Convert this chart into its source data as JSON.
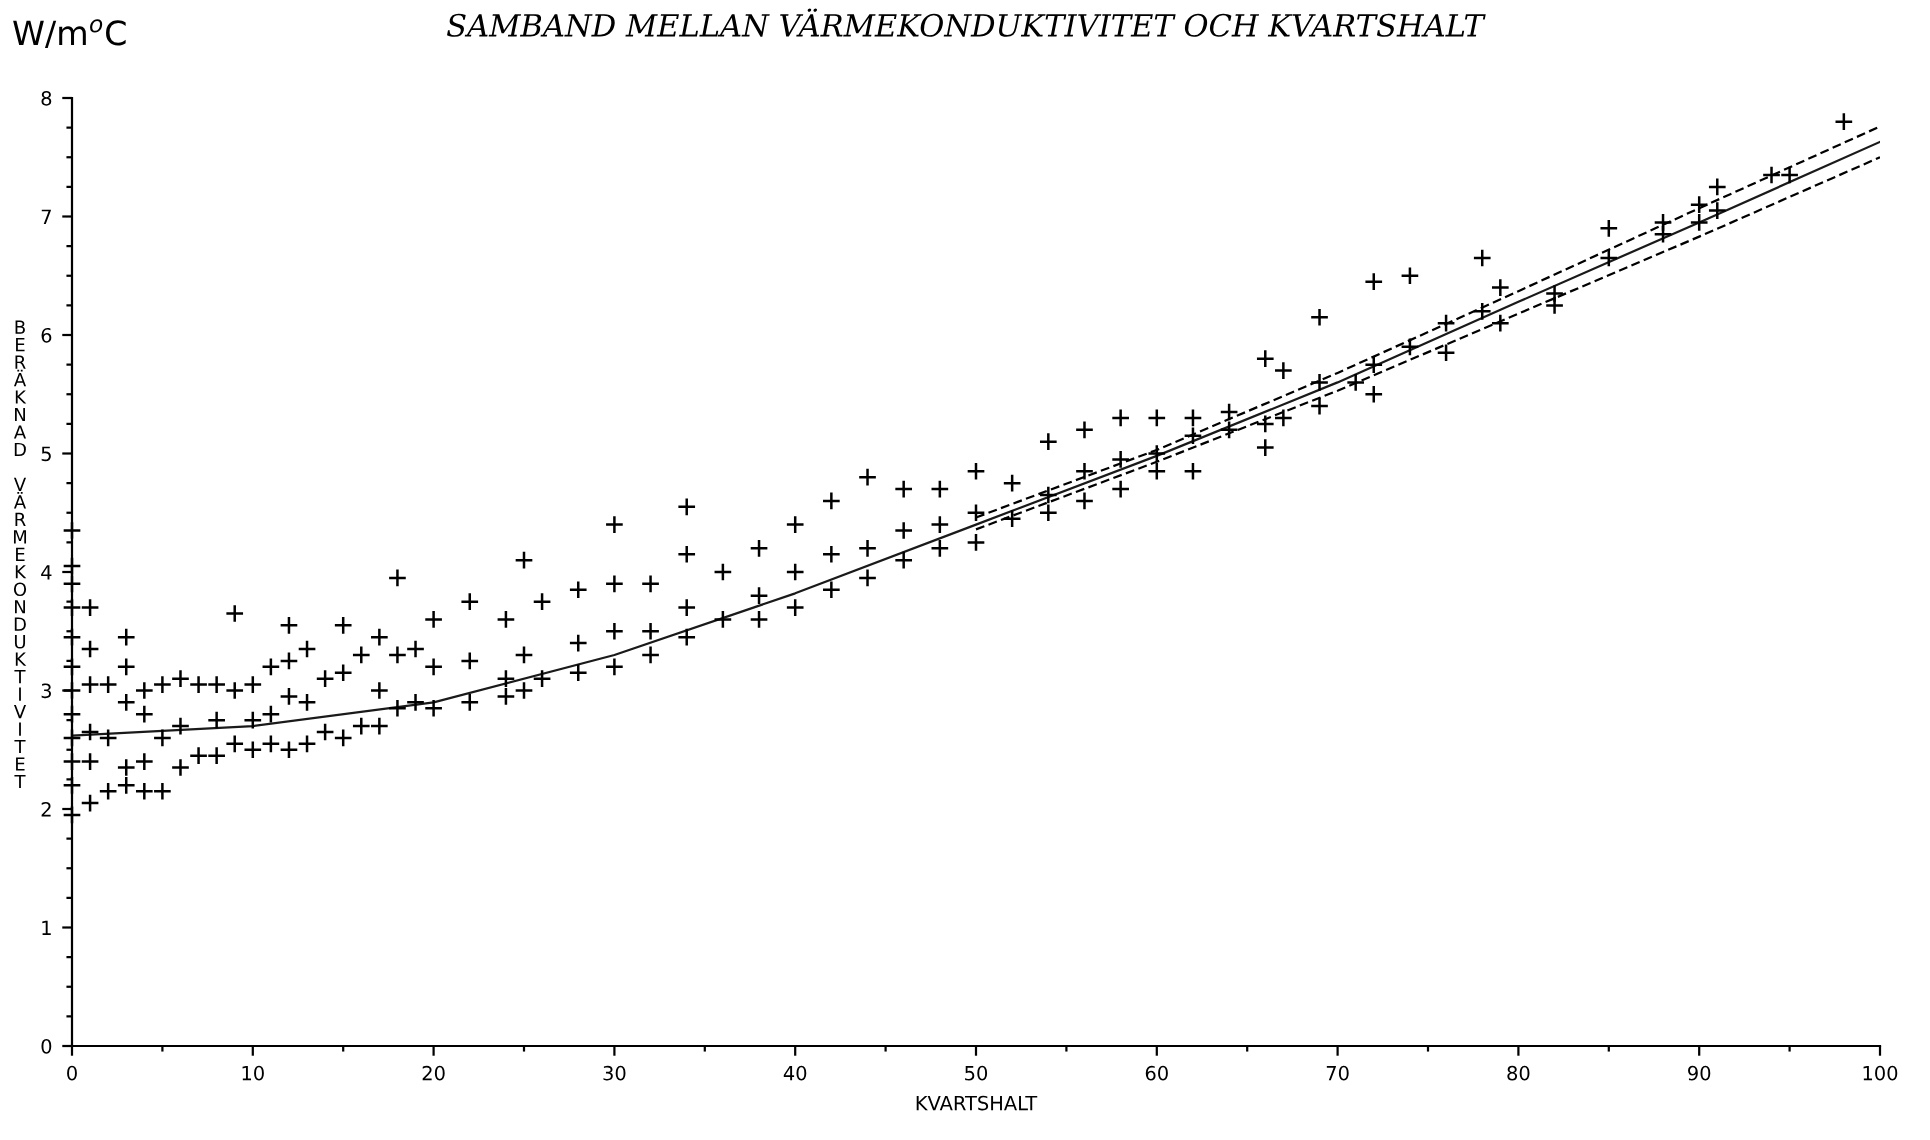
{
  "chart_data": {
    "type": "scatter",
    "title": "SAMBAND MELLAN VÄRMEKONDUKTIVITET OCH KVARTSHALT",
    "xlabel": "KVARTSHALT",
    "ylabel": "BERÄKNAD VÄRMEKONDUKTIVITET",
    "annotations": [
      "W/m$^{o}$C"
    ],
    "xlim": [
      0,
      100
    ],
    "ylim": [
      0,
      8
    ],
    "xticks": [
      0,
      {
        "value": 5,
        "label": null
      },
      10,
      {
        "value": 15,
        "label": null
      },
      20,
      {
        "value": 25,
        "label": null
      },
      30,
      {
        "value": 35,
        "label": null
      },
      40,
      {
        "value": 45,
        "label": null
      },
      50,
      {
        "value": 55,
        "label": null
      },
      60,
      {
        "value": 65,
        "label": null
      },
      70,
      {
        "value": 75,
        "label": null
      },
      80,
      {
        "value": 85,
        "label": null
      },
      90,
      {
        "value": 95,
        "label": null
      },
      100
    ],
    "yticks": [
      0,
      {
        "value": 0.25,
        "label": null
      },
      {
        "value": 0.5,
        "label": null
      },
      {
        "value": 0.75,
        "label": null
      },
      1,
      {
        "value": 1.25,
        "label": null
      },
      {
        "value": 1.5,
        "label": null
      },
      {
        "value": 1.75,
        "label": null
      },
      2,
      {
        "value": 2.25,
        "label": null
      },
      {
        "value": 2.5,
        "label": null
      },
      {
        "value": 2.75,
        "label": null
      },
      3,
      {
        "value": 3.25,
        "label": null
      },
      {
        "value": 3.5,
        "label": null
      },
      {
        "value": 3.75,
        "label": null
      },
      4,
      {
        "value": 4.25,
        "label": null
      },
      {
        "value": 4.5,
        "label": null
      },
      {
        "value": 4.75,
        "label": null
      },
      5,
      {
        "value": 5.25,
        "label": null
      },
      {
        "value": 5.5,
        "label": null
      },
      {
        "value": 5.75,
        "label": null
      },
      6,
      {
        "value": 6.25,
        "label": null
      },
      {
        "value": 6.5,
        "label": null
      },
      {
        "value": 6.75,
        "label": null
      },
      7,
      {
        "value": 7.25,
        "label": null
      },
      {
        "value": 7.5,
        "label": null
      },
      {
        "value": 7.75,
        "label": null
      },
      8
    ],
    "grid": false,
    "legend": false,
    "series": [
      {
        "marker": "cross",
        "color": "#000000",
        "x": [
          0,
          0,
          0,
          0,
          0,
          0,
          0,
          0,
          0,
          0,
          0,
          0,
          1,
          1,
          1,
          1,
          1,
          1,
          2,
          2,
          2,
          3,
          3,
          3,
          3,
          3,
          4,
          4,
          4,
          4,
          5,
          5,
          5,
          6,
          6,
          6,
          7,
          7,
          8,
          8,
          8,
          9,
          9,
          9,
          10,
          10,
          10,
          11,
          11,
          11,
          12,
          12,
          12,
          12,
          13,
          13,
          13,
          14,
          14,
          15,
          15,
          15,
          16,
          16,
          17,
          17,
          17,
          18,
          18,
          18,
          19,
          19,
          20,
          20,
          20,
          22,
          22,
          22,
          24,
          24,
          24,
          25,
          25,
          25,
          26,
          26,
          28,
          28,
          28,
          30,
          30,
          30,
          30,
          32,
          32,
          32,
          34,
          34,
          34,
          34,
          36,
          36,
          38,
          38,
          38,
          40,
          40,
          40,
          42,
          42,
          42,
          44,
          44,
          44,
          46,
          46,
          46,
          48,
          48,
          48,
          50,
          50,
          50,
          52,
          52,
          54,
          54,
          54,
          56,
          56,
          56,
          58,
          58,
          58,
          60,
          60,
          60,
          62,
          62,
          62,
          64,
          64,
          66,
          66,
          66,
          67,
          67,
          69,
          69,
          69,
          71,
          72,
          72,
          72,
          74,
          74,
          76,
          76,
          78,
          78,
          79,
          79,
          82,
          82,
          85,
          85,
          88,
          88,
          90,
          90,
          91,
          91,
          94,
          95,
          98
        ],
        "values": [
          4.35,
          4.05,
          3.9,
          3.7,
          3.45,
          3.2,
          3.0,
          2.8,
          2.6,
          2.4,
          2.2,
          1.95,
          3.7,
          3.35,
          3.05,
          2.65,
          2.4,
          2.05,
          3.05,
          2.6,
          2.15,
          3.45,
          3.2,
          2.9,
          2.35,
          2.2,
          3.0,
          2.8,
          2.4,
          2.15,
          3.05,
          2.6,
          2.15,
          3.1,
          2.7,
          2.35,
          3.05,
          2.45,
          3.05,
          2.75,
          2.45,
          3.65,
          3.0,
          2.55,
          3.05,
          2.75,
          2.5,
          3.2,
          2.8,
          2.55,
          3.55,
          3.25,
          2.95,
          2.5,
          3.35,
          2.9,
          2.55,
          3.1,
          2.65,
          3.55,
          3.15,
          2.6,
          3.3,
          2.7,
          3.45,
          3.0,
          2.7,
          3.95,
          3.3,
          2.85,
          3.35,
          2.9,
          3.6,
          3.2,
          2.85,
          3.75,
          3.25,
          2.9,
          3.6,
          3.1,
          2.95,
          4.1,
          3.3,
          3.0,
          3.75,
          3.1,
          3.85,
          3.4,
          3.15,
          4.4,
          3.9,
          3.5,
          3.2,
          3.9,
          3.5,
          3.3,
          4.55,
          4.15,
          3.7,
          3.45,
          4.0,
          3.6,
          4.2,
          3.8,
          3.6,
          4.4,
          4.0,
          3.7,
          4.6,
          4.15,
          3.85,
          4.8,
          4.2,
          3.95,
          4.7,
          4.35,
          4.1,
          4.7,
          4.4,
          4.2,
          4.85,
          4.5,
          4.25,
          4.75,
          4.45,
          5.1,
          4.65,
          4.5,
          5.2,
          4.85,
          4.6,
          5.3,
          4.95,
          4.7,
          5.3,
          5.0,
          4.85,
          5.3,
          5.15,
          4.85,
          5.35,
          5.2,
          5.8,
          5.25,
          5.05,
          5.7,
          5.3,
          6.15,
          5.6,
          5.4,
          5.6,
          6.45,
          5.75,
          5.5,
          6.5,
          5.9,
          6.1,
          5.85,
          6.65,
          6.2,
          6.4,
          6.1,
          6.35,
          6.25,
          6.9,
          6.65,
          6.95,
          6.85,
          7.1,
          6.95,
          7.25,
          7.05,
          7.35,
          7.35,
          7.8
        ]
      },
      {
        "type": "line",
        "marker": "none",
        "line_style": "solid",
        "color": "#1a1a1a",
        "x": [
          0,
          10,
          20,
          30,
          40,
          50,
          60,
          70,
          80,
          90,
          100
        ],
        "values": [
          2.62,
          2.7,
          2.9,
          3.3,
          3.82,
          4.4,
          4.98,
          5.6,
          6.28,
          6.95,
          7.63
        ]
      },
      {
        "type": "line",
        "marker": "none",
        "line_style": "dashed",
        "color": "#000000",
        "x": [
          50,
          60,
          70,
          80,
          90,
          100
        ],
        "values": [
          4.46,
          5.03,
          5.68,
          6.37,
          7.07,
          7.76
        ]
      },
      {
        "type": "line",
        "marker": "none",
        "line_style": "dashed",
        "color": "#000000",
        "x": [
          50,
          60,
          70,
          80,
          90,
          100
        ],
        "values": [
          4.36,
          4.93,
          5.53,
          6.18,
          6.83,
          7.5
        ]
      }
    ]
  }
}
